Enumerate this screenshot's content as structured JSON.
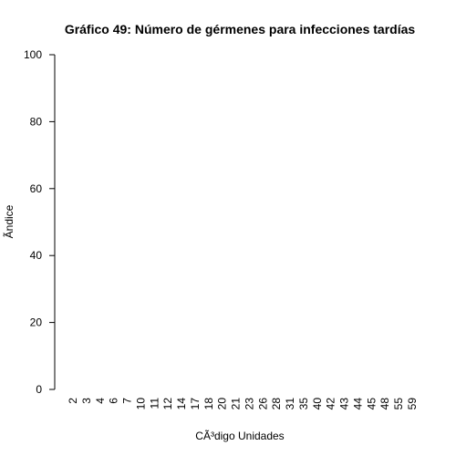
{
  "chart_data": {
    "type": "bar",
    "title": "Gráfico 49: Número de gérmenes para infecciones tardías",
    "x_label": "CÃ³digo Unidades",
    "y_label": "Ãndice",
    "categories": [
      "2",
      "3",
      "4",
      "6",
      "7",
      "10",
      "11",
      "12",
      "14",
      "17",
      "18",
      "20",
      "21",
      "23",
      "26",
      "28",
      "31",
      "35",
      "40",
      "42",
      "43",
      "44",
      "45",
      "48",
      "55",
      "59"
    ],
    "values": [
      0,
      0,
      0,
      0,
      0,
      0,
      0,
      0,
      0,
      0,
      0,
      0,
      0,
      0,
      0,
      0,
      0,
      0,
      0,
      0,
      0,
      0,
      0,
      0,
      0,
      0
    ],
    "color": "#bebebe",
    "ylim": [
      0,
      100
    ],
    "yticks": [
      0,
      20,
      40,
      60,
      80,
      100
    ],
    "grid": false
  }
}
